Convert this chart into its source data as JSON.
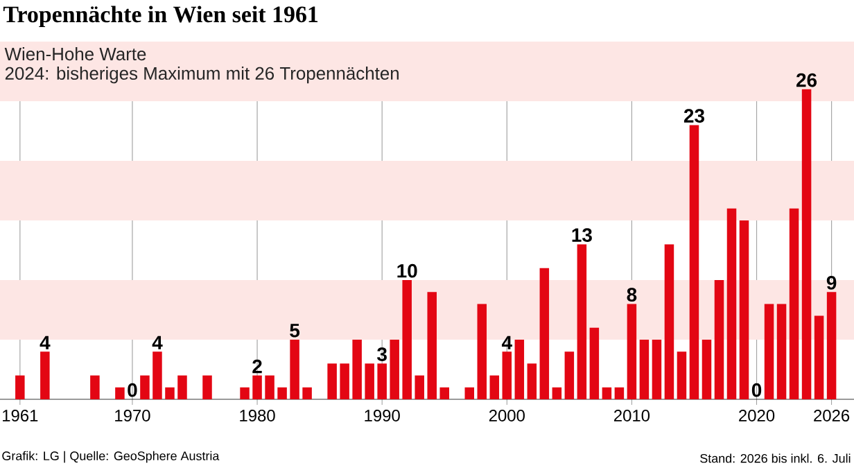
{
  "chart_data": {
    "type": "bar",
    "title": "Tropennächte in Wien seit 1961",
    "annotations": [
      "Wien-Hohe Warte",
      "2024: bisheriges Maximum mit 26 Tropennächten",
      "Grafik: LG | Quelle: GeoSphere Austria",
      "Stand: 2026 bis inkl. 6. Juli"
    ],
    "x": [
      1961,
      1962,
      1963,
      1964,
      1965,
      1966,
      1967,
      1968,
      1969,
      1970,
      1971,
      1972,
      1973,
      1974,
      1975,
      1976,
      1977,
      1978,
      1979,
      1980,
      1981,
      1982,
      1983,
      1984,
      1985,
      1986,
      1987,
      1988,
      1989,
      1990,
      1991,
      1992,
      1993,
      1994,
      1995,
      1996,
      1997,
      1998,
      1999,
      2000,
      2001,
      2002,
      2003,
      2004,
      2005,
      2006,
      2007,
      2008,
      2009,
      2010,
      2011,
      2012,
      2013,
      2014,
      2015,
      2016,
      2017,
      2018,
      2019,
      2020,
      2021,
      2022,
      2023,
      2024,
      2025,
      2026
    ],
    "values": [
      2,
      0,
      4,
      0,
      0,
      0,
      2,
      0,
      1,
      0,
      2,
      4,
      1,
      2,
      0,
      2,
      0,
      0,
      1,
      2,
      2,
      1,
      5,
      1,
      0,
      3,
      3,
      5,
      3,
      3,
      5,
      10,
      2,
      9,
      1,
      0,
      1,
      8,
      2,
      4,
      5,
      3,
      11,
      1,
      4,
      13,
      6,
      1,
      1,
      8,
      5,
      5,
      13,
      4,
      23,
      5,
      10,
      16,
      15,
      0,
      8,
      8,
      16,
      26,
      7,
      9
    ],
    "value_labels": [
      null,
      null,
      "4",
      null,
      null,
      null,
      null,
      null,
      null,
      "0",
      null,
      "4",
      null,
      null,
      null,
      null,
      null,
      null,
      null,
      "2",
      null,
      null,
      "5",
      null,
      null,
      null,
      null,
      null,
      null,
      "3",
      null,
      "10",
      null,
      null,
      null,
      null,
      null,
      null,
      null,
      "4",
      null,
      null,
      null,
      null,
      null,
      "13",
      null,
      null,
      null,
      "8",
      null,
      null,
      null,
      null,
      "23",
      null,
      null,
      null,
      null,
      "0",
      null,
      null,
      null,
      "26",
      null,
      "9"
    ],
    "color": "#e30613",
    "xlim": [
      1959.4,
      2027.8
    ],
    "xticks": [
      1961,
      1970,
      1980,
      1990,
      2000,
      2010,
      2020,
      2026
    ],
    "ylim": [
      0,
      30
    ],
    "grid": "x",
    "bands": [
      {
        "axis": "y",
        "from": 5,
        "to": 10,
        "color": "#fde6e4"
      },
      {
        "axis": "y",
        "from": 15,
        "to": 20,
        "color": "#fde6e4"
      },
      {
        "axis": "y",
        "from": 25,
        "to": 30,
        "color": "#fde6e4"
      }
    ]
  }
}
